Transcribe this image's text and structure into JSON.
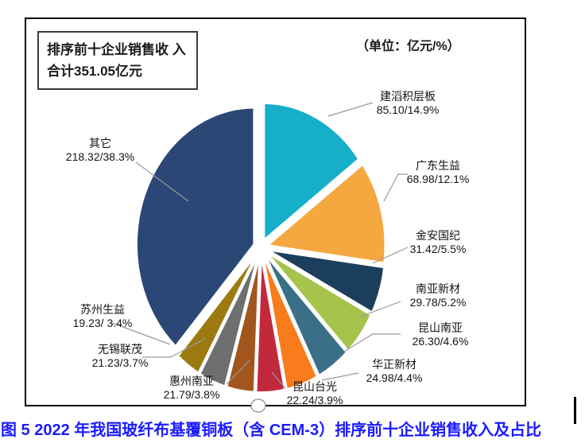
{
  "header": {
    "summary_box": {
      "line1": "排序前十企业销售收",
      "line2": "入合计351.05亿元"
    },
    "unit_label": "（单位：亿元/%）"
  },
  "caption": "图 5 2022 年我国玻纤布基覆铜板（含 CEM-3）排序前十企业销售收入及占比",
  "chart_data": {
    "type": "pie",
    "title": "2022年我国玻纤布基覆铜板（含CEM-3）排序前十企业销售收入及占比",
    "unit": "亿元/%",
    "top10_total_revenue_yi_yuan": 351.05,
    "start_angle_deg": 0,
    "direction": "clockwise",
    "slices": [
      {
        "name": "建滔积层板",
        "value": 85.1,
        "pct": 14.9,
        "value_label": "85.10/14.9%",
        "color": "#17AEC9"
      },
      {
        "name": "广东生益",
        "value": 68.98,
        "pct": 12.1,
        "value_label": "68.98/12.1%",
        "color": "#F5A740"
      },
      {
        "name": "金安国纪",
        "value": 31.42,
        "pct": 5.5,
        "value_label": "31.42/5.5%",
        "color": "#1C3E5D"
      },
      {
        "name": "南亚新材",
        "value": 29.78,
        "pct": 5.2,
        "value_label": "29.78/5.2%",
        "color": "#A6C34C"
      },
      {
        "name": "昆山南亚",
        "value": 26.3,
        "pct": 4.6,
        "value_label": "26.30/4.6%",
        "color": "#3A7087"
      },
      {
        "name": "华正新材",
        "value": 24.98,
        "pct": 4.4,
        "value_label": "24.98/4.4%",
        "color": "#F87C1B"
      },
      {
        "name": "昆山台光",
        "value": 22.24,
        "pct": 3.9,
        "value_label": "22.24/3.9%",
        "color": "#C2293C"
      },
      {
        "name": "惠州南亚",
        "value": 21.79,
        "pct": 3.8,
        "value_label": "21.79/3.8%",
        "color": "#A2561E"
      },
      {
        "name": "无锡联茂",
        "value": 21.23,
        "pct": 3.7,
        "value_label": "21.23/3.7%",
        "color": "#6F6F6F"
      },
      {
        "name": "苏州生益",
        "value": 19.23,
        "pct": 3.4,
        "value_label": "19.23/ 3.4%",
        "color": "#9C7A10"
      },
      {
        "name": "其它",
        "value": 218.32,
        "pct": 38.3,
        "value_label": "218.32/38.3%",
        "color": "#2B4775"
      }
    ]
  }
}
